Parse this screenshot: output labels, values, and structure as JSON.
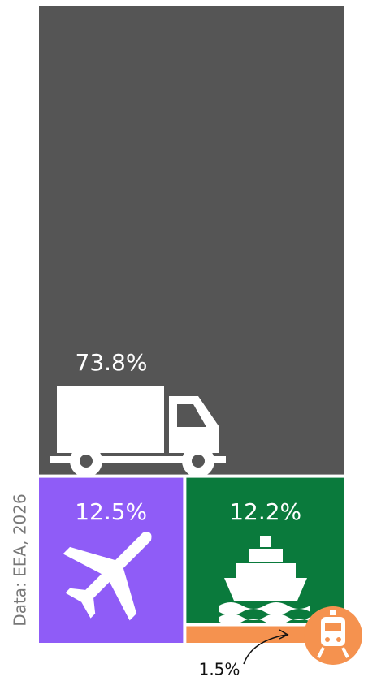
{
  "chart_data": {
    "type": "treemap",
    "values": [
      73.8,
      12.5,
      12.2,
      1.5
    ],
    "value_labels": [
      "73.8%",
      "12.5%",
      "12.2%",
      "1.5%"
    ],
    "colors": [
      "#555555",
      "#8f5cf7",
      "#0a7a3c",
      "#f5924f"
    ],
    "source": "Data: EEA, 2026"
  }
}
